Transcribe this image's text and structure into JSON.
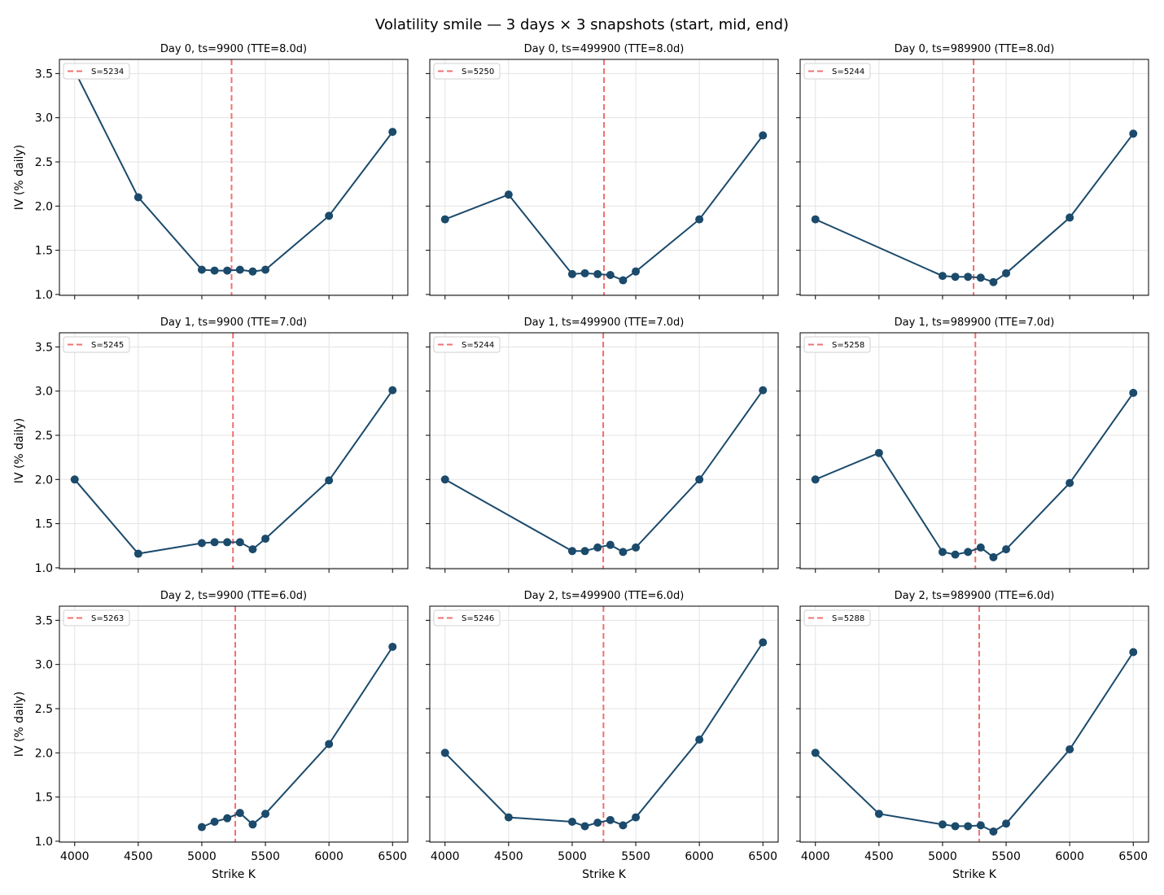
{
  "figure": {
    "title": "Volatility smile — 3 days × 3 snapshots (start, mid, end)",
    "xlabel": "Strike K",
    "ylabel": "IV (% daily)"
  },
  "colors": {
    "series": "#1b4a6b",
    "spot_line": "#f07070",
    "grid": "#e3e3e3",
    "axes": "#000000"
  },
  "chart_data": [
    {
      "type": "line",
      "title": "Day 0, ts=9900  (TTE=8.0d)",
      "spot_label": "S=5234",
      "spot": 5234,
      "x": [
        4000,
        4500,
        5000,
        5100,
        5200,
        5300,
        5400,
        5500,
        6000,
        6500
      ],
      "y": [
        3.53,
        2.1,
        1.28,
        1.27,
        1.27,
        1.28,
        1.26,
        1.28,
        1.89,
        2.84
      ],
      "xlim": [
        3880,
        6620
      ],
      "ylim": [
        0.99,
        3.66
      ],
      "xticks": [
        4000,
        4500,
        5000,
        5500,
        6000,
        6500
      ],
      "yticks": [
        1.0,
        1.5,
        2.0,
        2.5,
        3.0,
        3.5
      ],
      "grid": true,
      "legend": "top-left"
    },
    {
      "type": "line",
      "title": "Day 0, ts=499900  (TTE=8.0d)",
      "spot_label": "S=5250",
      "spot": 5250,
      "x": [
        4000,
        4500,
        5000,
        5100,
        5200,
        5300,
        5400,
        5500,
        6000,
        6500
      ],
      "y": [
        1.85,
        2.13,
        1.23,
        1.24,
        1.23,
        1.22,
        1.16,
        1.26,
        1.85,
        2.8
      ],
      "xlim": [
        3880,
        6620
      ],
      "ylim": [
        0.99,
        3.66
      ],
      "xticks": [
        4000,
        4500,
        5000,
        5500,
        6000,
        6500
      ],
      "yticks": [
        1.0,
        1.5,
        2.0,
        2.5,
        3.0,
        3.5
      ],
      "grid": true,
      "legend": "top-left"
    },
    {
      "type": "line",
      "title": "Day 0, ts=989900  (TTE=8.0d)",
      "spot_label": "S=5244",
      "spot": 5244,
      "x": [
        4000,
        5000,
        5100,
        5200,
        5300,
        5400,
        5500,
        6000,
        6500
      ],
      "y": [
        1.85,
        1.21,
        1.2,
        1.2,
        1.19,
        1.14,
        1.24,
        1.87,
        2.82
      ],
      "xlim": [
        3880,
        6620
      ],
      "ylim": [
        0.99,
        3.66
      ],
      "xticks": [
        4000,
        4500,
        5000,
        5500,
        6000,
        6500
      ],
      "yticks": [
        1.0,
        1.5,
        2.0,
        2.5,
        3.0,
        3.5
      ],
      "grid": true,
      "legend": "top-left"
    },
    {
      "type": "line",
      "title": "Day 1, ts=9900  (TTE=7.0d)",
      "spot_label": "S=5245",
      "spot": 5245,
      "x": [
        4000,
        4500,
        5000,
        5100,
        5200,
        5300,
        5400,
        5500,
        6000,
        6500
      ],
      "y": [
        2.0,
        1.16,
        1.28,
        1.29,
        1.29,
        1.29,
        1.21,
        1.33,
        1.99,
        3.01
      ],
      "xlim": [
        3880,
        6620
      ],
      "ylim": [
        0.99,
        3.66
      ],
      "xticks": [
        4000,
        4500,
        5000,
        5500,
        6000,
        6500
      ],
      "yticks": [
        1.0,
        1.5,
        2.0,
        2.5,
        3.0,
        3.5
      ],
      "grid": true,
      "legend": "top-left"
    },
    {
      "type": "line",
      "title": "Day 1, ts=499900  (TTE=7.0d)",
      "spot_label": "S=5244",
      "spot": 5244,
      "x": [
        4000,
        5000,
        5100,
        5200,
        5300,
        5400,
        5500,
        6000,
        6500
      ],
      "y": [
        2.0,
        1.19,
        1.19,
        1.23,
        1.26,
        1.18,
        1.23,
        2.0,
        3.01
      ],
      "xlim": [
        3880,
        6620
      ],
      "ylim": [
        0.99,
        3.66
      ],
      "xticks": [
        4000,
        4500,
        5000,
        5500,
        6000,
        6500
      ],
      "yticks": [
        1.0,
        1.5,
        2.0,
        2.5,
        3.0,
        3.5
      ],
      "grid": true,
      "legend": "top-left"
    },
    {
      "type": "line",
      "title": "Day 1, ts=989900  (TTE=7.0d)",
      "spot_label": "S=5258",
      "spot": 5258,
      "x": [
        4000,
        4500,
        5000,
        5100,
        5200,
        5300,
        5400,
        5500,
        6000,
        6500
      ],
      "y": [
        2.0,
        2.3,
        1.18,
        1.15,
        1.18,
        1.23,
        1.12,
        1.21,
        1.96,
        2.98
      ],
      "xlim": [
        3880,
        6620
      ],
      "ylim": [
        0.99,
        3.66
      ],
      "xticks": [
        4000,
        4500,
        5000,
        5500,
        6000,
        6500
      ],
      "yticks": [
        1.0,
        1.5,
        2.0,
        2.5,
        3.0,
        3.5
      ],
      "grid": true,
      "legend": "top-left"
    },
    {
      "type": "line",
      "title": "Day 2, ts=9900  (TTE=6.0d)",
      "spot_label": "S=5263",
      "spot": 5263,
      "x": [
        5000,
        5100,
        5200,
        5300,
        5400,
        5500,
        6000,
        6500
      ],
      "y": [
        1.16,
        1.22,
        1.26,
        1.32,
        1.19,
        1.31,
        2.1,
        3.2
      ],
      "xlim": [
        3880,
        6620
      ],
      "ylim": [
        0.99,
        3.66
      ],
      "xticks": [
        4000,
        4500,
        5000,
        5500,
        6000,
        6500
      ],
      "yticks": [
        1.0,
        1.5,
        2.0,
        2.5,
        3.0,
        3.5
      ],
      "grid": true,
      "legend": "top-left"
    },
    {
      "type": "line",
      "title": "Day 2, ts=499900  (TTE=6.0d)",
      "spot_label": "S=5246",
      "spot": 5246,
      "x": [
        4000,
        4500,
        5000,
        5100,
        5200,
        5300,
        5400,
        5500,
        6000,
        6500
      ],
      "y": [
        2.0,
        1.27,
        1.22,
        1.17,
        1.21,
        1.24,
        1.18,
        1.27,
        2.15,
        3.25
      ],
      "xlim": [
        3880,
        6620
      ],
      "ylim": [
        0.99,
        3.66
      ],
      "xticks": [
        4000,
        4500,
        5000,
        5500,
        6000,
        6500
      ],
      "yticks": [
        1.0,
        1.5,
        2.0,
        2.5,
        3.0,
        3.5
      ],
      "grid": true,
      "legend": "top-left"
    },
    {
      "type": "line",
      "title": "Day 2, ts=989900  (TTE=6.0d)",
      "spot_label": "S=5288",
      "spot": 5288,
      "x": [
        4000,
        4500,
        5000,
        5100,
        5200,
        5300,
        5400,
        5500,
        6000,
        6500
      ],
      "y": [
        2.0,
        1.31,
        1.19,
        1.17,
        1.17,
        1.18,
        1.11,
        1.2,
        2.04,
        3.14
      ],
      "xlim": [
        3880,
        6620
      ],
      "ylim": [
        0.99,
        3.66
      ],
      "xticks": [
        4000,
        4500,
        5000,
        5500,
        6000,
        6500
      ],
      "yticks": [
        1.0,
        1.5,
        2.0,
        2.5,
        3.0,
        3.5
      ],
      "grid": true,
      "legend": "top-left"
    }
  ]
}
